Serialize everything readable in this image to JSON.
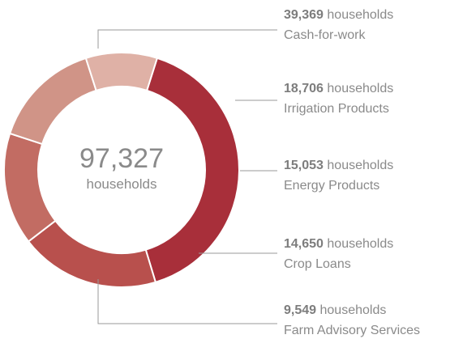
{
  "chart_data": {
    "type": "donut",
    "total_value": "97,327",
    "total_unit": "households",
    "unit_label": "households",
    "slices": [
      {
        "label": "Cash-for-work",
        "value": 39369,
        "display": "39,369",
        "color": "#a82f3a"
      },
      {
        "label": "Irrigation Products",
        "value": 18706,
        "display": "18,706",
        "color": "#b8504d"
      },
      {
        "label": "Energy Products",
        "value": 15053,
        "display": "15,053",
        "color": "#c26c63"
      },
      {
        "label": "Crop Loans",
        "value": 14650,
        "display": "14,650",
        "color": "#d09487"
      },
      {
        "label": "Farm Advisory Services",
        "value": 9549,
        "display": "9,549",
        "color": "#dfb1a6"
      }
    ]
  }
}
